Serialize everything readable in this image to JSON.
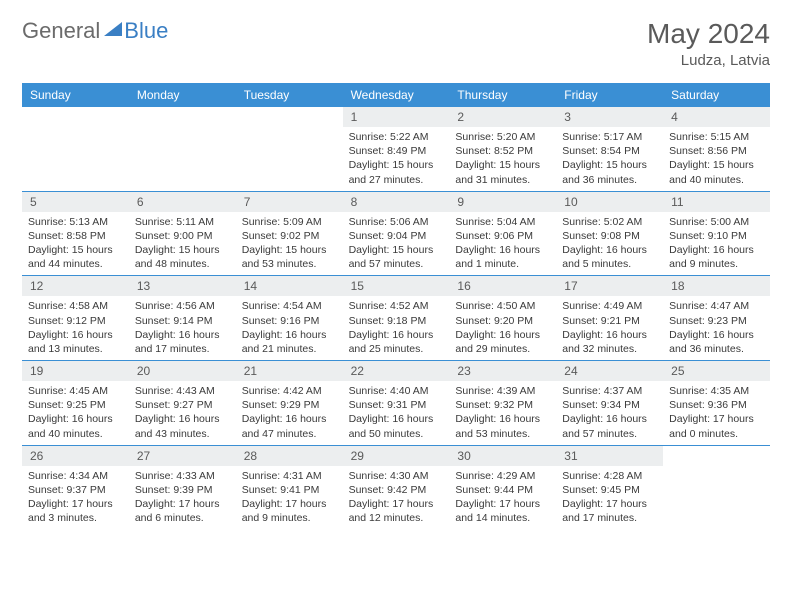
{
  "logo": {
    "part1": "General",
    "part2": "Blue"
  },
  "title": "May 2024",
  "location": "Ludza, Latvia",
  "dayNames": [
    "Sunday",
    "Monday",
    "Tuesday",
    "Wednesday",
    "Thursday",
    "Friday",
    "Saturday"
  ],
  "colors": {
    "headerBg": "#3a8fd4",
    "rowBorder": "#3a8fd4",
    "dayNumBg": "#eceeef",
    "textGray": "#5a5a5a",
    "logoBlue": "#3a7fc4"
  },
  "weeks": [
    [
      {
        "day": "",
        "lines": []
      },
      {
        "day": "",
        "lines": []
      },
      {
        "day": "",
        "lines": []
      },
      {
        "day": "1",
        "lines": [
          "Sunrise: 5:22 AM",
          "Sunset: 8:49 PM",
          "Daylight: 15 hours",
          "and 27 minutes."
        ]
      },
      {
        "day": "2",
        "lines": [
          "Sunrise: 5:20 AM",
          "Sunset: 8:52 PM",
          "Daylight: 15 hours",
          "and 31 minutes."
        ]
      },
      {
        "day": "3",
        "lines": [
          "Sunrise: 5:17 AM",
          "Sunset: 8:54 PM",
          "Daylight: 15 hours",
          "and 36 minutes."
        ]
      },
      {
        "day": "4",
        "lines": [
          "Sunrise: 5:15 AM",
          "Sunset: 8:56 PM",
          "Daylight: 15 hours",
          "and 40 minutes."
        ]
      }
    ],
    [
      {
        "day": "5",
        "lines": [
          "Sunrise: 5:13 AM",
          "Sunset: 8:58 PM",
          "Daylight: 15 hours",
          "and 44 minutes."
        ]
      },
      {
        "day": "6",
        "lines": [
          "Sunrise: 5:11 AM",
          "Sunset: 9:00 PM",
          "Daylight: 15 hours",
          "and 48 minutes."
        ]
      },
      {
        "day": "7",
        "lines": [
          "Sunrise: 5:09 AM",
          "Sunset: 9:02 PM",
          "Daylight: 15 hours",
          "and 53 minutes."
        ]
      },
      {
        "day": "8",
        "lines": [
          "Sunrise: 5:06 AM",
          "Sunset: 9:04 PM",
          "Daylight: 15 hours",
          "and 57 minutes."
        ]
      },
      {
        "day": "9",
        "lines": [
          "Sunrise: 5:04 AM",
          "Sunset: 9:06 PM",
          "Daylight: 16 hours",
          "and 1 minute."
        ]
      },
      {
        "day": "10",
        "lines": [
          "Sunrise: 5:02 AM",
          "Sunset: 9:08 PM",
          "Daylight: 16 hours",
          "and 5 minutes."
        ]
      },
      {
        "day": "11",
        "lines": [
          "Sunrise: 5:00 AM",
          "Sunset: 9:10 PM",
          "Daylight: 16 hours",
          "and 9 minutes."
        ]
      }
    ],
    [
      {
        "day": "12",
        "lines": [
          "Sunrise: 4:58 AM",
          "Sunset: 9:12 PM",
          "Daylight: 16 hours",
          "and 13 minutes."
        ]
      },
      {
        "day": "13",
        "lines": [
          "Sunrise: 4:56 AM",
          "Sunset: 9:14 PM",
          "Daylight: 16 hours",
          "and 17 minutes."
        ]
      },
      {
        "day": "14",
        "lines": [
          "Sunrise: 4:54 AM",
          "Sunset: 9:16 PM",
          "Daylight: 16 hours",
          "and 21 minutes."
        ]
      },
      {
        "day": "15",
        "lines": [
          "Sunrise: 4:52 AM",
          "Sunset: 9:18 PM",
          "Daylight: 16 hours",
          "and 25 minutes."
        ]
      },
      {
        "day": "16",
        "lines": [
          "Sunrise: 4:50 AM",
          "Sunset: 9:20 PM",
          "Daylight: 16 hours",
          "and 29 minutes."
        ]
      },
      {
        "day": "17",
        "lines": [
          "Sunrise: 4:49 AM",
          "Sunset: 9:21 PM",
          "Daylight: 16 hours",
          "and 32 minutes."
        ]
      },
      {
        "day": "18",
        "lines": [
          "Sunrise: 4:47 AM",
          "Sunset: 9:23 PM",
          "Daylight: 16 hours",
          "and 36 minutes."
        ]
      }
    ],
    [
      {
        "day": "19",
        "lines": [
          "Sunrise: 4:45 AM",
          "Sunset: 9:25 PM",
          "Daylight: 16 hours",
          "and 40 minutes."
        ]
      },
      {
        "day": "20",
        "lines": [
          "Sunrise: 4:43 AM",
          "Sunset: 9:27 PM",
          "Daylight: 16 hours",
          "and 43 minutes."
        ]
      },
      {
        "day": "21",
        "lines": [
          "Sunrise: 4:42 AM",
          "Sunset: 9:29 PM",
          "Daylight: 16 hours",
          "and 47 minutes."
        ]
      },
      {
        "day": "22",
        "lines": [
          "Sunrise: 4:40 AM",
          "Sunset: 9:31 PM",
          "Daylight: 16 hours",
          "and 50 minutes."
        ]
      },
      {
        "day": "23",
        "lines": [
          "Sunrise: 4:39 AM",
          "Sunset: 9:32 PM",
          "Daylight: 16 hours",
          "and 53 minutes."
        ]
      },
      {
        "day": "24",
        "lines": [
          "Sunrise: 4:37 AM",
          "Sunset: 9:34 PM",
          "Daylight: 16 hours",
          "and 57 minutes."
        ]
      },
      {
        "day": "25",
        "lines": [
          "Sunrise: 4:35 AM",
          "Sunset: 9:36 PM",
          "Daylight: 17 hours",
          "and 0 minutes."
        ]
      }
    ],
    [
      {
        "day": "26",
        "lines": [
          "Sunrise: 4:34 AM",
          "Sunset: 9:37 PM",
          "Daylight: 17 hours",
          "and 3 minutes."
        ]
      },
      {
        "day": "27",
        "lines": [
          "Sunrise: 4:33 AM",
          "Sunset: 9:39 PM",
          "Daylight: 17 hours",
          "and 6 minutes."
        ]
      },
      {
        "day": "28",
        "lines": [
          "Sunrise: 4:31 AM",
          "Sunset: 9:41 PM",
          "Daylight: 17 hours",
          "and 9 minutes."
        ]
      },
      {
        "day": "29",
        "lines": [
          "Sunrise: 4:30 AM",
          "Sunset: 9:42 PM",
          "Daylight: 17 hours",
          "and 12 minutes."
        ]
      },
      {
        "day": "30",
        "lines": [
          "Sunrise: 4:29 AM",
          "Sunset: 9:44 PM",
          "Daylight: 17 hours",
          "and 14 minutes."
        ]
      },
      {
        "day": "31",
        "lines": [
          "Sunrise: 4:28 AM",
          "Sunset: 9:45 PM",
          "Daylight: 17 hours",
          "and 17 minutes."
        ]
      },
      {
        "day": "",
        "lines": []
      }
    ]
  ]
}
